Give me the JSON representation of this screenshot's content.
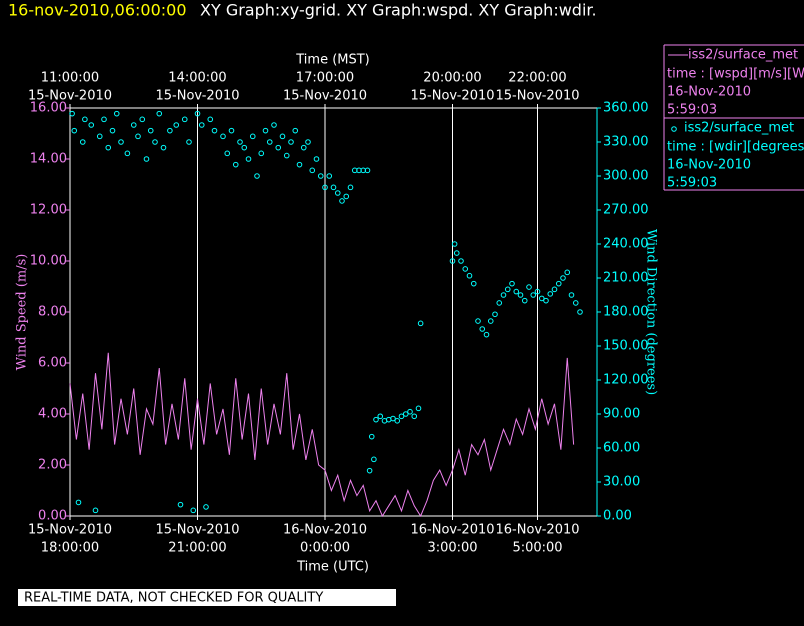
{
  "header": {
    "date": "16-nov-2010,06:00:00",
    "graphs": "XY Graph:xy-grid.  XY Graph:wspd.  XY Graph:wdir."
  },
  "footer": "REAL-TIME DATA, NOT CHECKED FOR QUALITY",
  "chart_data": {
    "type": "line",
    "xlabel": "Time (UTC)",
    "x2label": "Time (MST)",
    "ylabel": "Wind Speed (m/s)",
    "y2label": "Wind Direction (degrees)",
    "xlim": [
      0,
      12.4
    ],
    "ylim": [
      0,
      16
    ],
    "y2lim": [
      0,
      360
    ],
    "grid": true,
    "xticks": [
      {
        "value": 0,
        "label": [
          "15-Nov-2010",
          "18:00:00"
        ]
      },
      {
        "value": 3,
        "label": [
          "15-Nov-2010",
          "21:00:00"
        ]
      },
      {
        "value": 6,
        "label": [
          "16-Nov-2010",
          "0:00:00"
        ]
      },
      {
        "value": 9,
        "label": [
          "16-Nov-2010",
          "3:00:00"
        ]
      },
      {
        "value": 11,
        "label": [
          "16-Nov-2010",
          "5:00:00"
        ]
      }
    ],
    "x2ticks": [
      {
        "value": 0,
        "label": [
          "11:00:00",
          "15-Nov-2010"
        ]
      },
      {
        "value": 3,
        "label": [
          "14:00:00",
          "15-Nov-2010"
        ]
      },
      {
        "value": 6,
        "label": [
          "17:00:00",
          "15-Nov-2010"
        ]
      },
      {
        "value": 9,
        "label": [
          "20:00:00",
          "15-Nov-2010"
        ]
      },
      {
        "value": 11,
        "label": [
          "22:00:00",
          "15-Nov-2010"
        ]
      }
    ],
    "yticks": [
      {
        "value": 0,
        "label": "0.00"
      },
      {
        "value": 2,
        "label": "2.00"
      },
      {
        "value": 4,
        "label": "4.00"
      },
      {
        "value": 6,
        "label": "6.00"
      },
      {
        "value": 8,
        "label": "8.00"
      },
      {
        "value": 10,
        "label": "10.00"
      },
      {
        "value": 12,
        "label": "12.00"
      },
      {
        "value": 14,
        "label": "14.00"
      },
      {
        "value": 16,
        "label": "16.00"
      }
    ],
    "y2ticks": [
      {
        "value": 0,
        "label": "0.00"
      },
      {
        "value": 30,
        "label": "30.00"
      },
      {
        "value": 60,
        "label": "60.00"
      },
      {
        "value": 90,
        "label": "90.00"
      },
      {
        "value": 120,
        "label": "120.00"
      },
      {
        "value": 150,
        "label": "150.00"
      },
      {
        "value": 180,
        "label": "180.00"
      },
      {
        "value": 210,
        "label": "210.00"
      },
      {
        "value": 240,
        "label": "240.00"
      },
      {
        "value": 270,
        "label": "270.00"
      },
      {
        "value": 300,
        "label": "300.00"
      },
      {
        "value": 330,
        "label": "330.00"
      },
      {
        "value": 360,
        "label": "360.00"
      }
    ],
    "series": [
      {
        "name": "iss2/surface_met",
        "type": "line",
        "color": "#ee82ee",
        "legend_lines": [
          "time : [wspd][m/s][Wind",
          "16-Nov-2010",
          "5:59:03"
        ],
        "x": [
          0,
          0.15,
          0.3,
          0.45,
          0.6,
          0.75,
          0.9,
          1.05,
          1.2,
          1.35,
          1.5,
          1.65,
          1.8,
          1.95,
          2.1,
          2.25,
          2.4,
          2.55,
          2.7,
          2.85,
          3,
          3.15,
          3.3,
          3.45,
          3.6,
          3.75,
          3.9,
          4.05,
          4.2,
          4.35,
          4.5,
          4.65,
          4.8,
          4.95,
          5.1,
          5.25,
          5.4,
          5.55,
          5.7,
          5.85,
          6,
          6.15,
          6.3,
          6.45,
          6.6,
          6.75,
          6.9,
          7.05,
          7.2,
          7.35,
          7.5,
          7.65,
          7.8,
          7.95,
          8.1,
          8.25,
          8.4,
          8.55,
          8.7,
          8.85,
          9,
          9.15,
          9.3,
          9.45,
          9.6,
          9.75,
          9.9,
          10.05,
          10.2,
          10.35,
          10.5,
          10.65,
          10.8,
          10.95,
          11.1,
          11.25,
          11.4,
          11.55,
          11.7,
          11.85
        ],
        "values": [
          5.2,
          3.0,
          4.8,
          2.6,
          5.6,
          3.4,
          6.4,
          2.8,
          4.6,
          3.2,
          5.0,
          2.4,
          4.2,
          3.6,
          5.8,
          2.8,
          4.4,
          3.0,
          5.4,
          2.6,
          4.6,
          2.8,
          5.2,
          3.2,
          4.2,
          2.4,
          5.4,
          3.0,
          4.8,
          2.2,
          5.0,
          2.8,
          4.4,
          3.2,
          5.6,
          2.6,
          4.0,
          2.2,
          3.4,
          2.0,
          1.8,
          1.0,
          1.6,
          0.6,
          1.4,
          0.8,
          1.2,
          0.2,
          0.6,
          0.0,
          0.4,
          0.8,
          0.2,
          1.0,
          0.4,
          0.0,
          0.6,
          1.4,
          1.8,
          1.2,
          1.8,
          2.6,
          1.6,
          2.8,
          2.4,
          3.0,
          1.8,
          2.6,
          3.4,
          2.8,
          3.8,
          3.2,
          4.2,
          3.4,
          4.6,
          3.6,
          4.4,
          2.6,
          6.2,
          2.8
        ]
      },
      {
        "name": "iss2/surface_met",
        "type": "scatter",
        "axis": "y2",
        "color": "#00ffff",
        "legend_lines": [
          "time : [wdir][degrees][W",
          "16-Nov-2010",
          "5:59:03"
        ],
        "x": [
          0.05,
          0.1,
          0.2,
          0.3,
          0.35,
          0.5,
          0.6,
          0.7,
          0.8,
          0.9,
          1.0,
          1.1,
          1.2,
          1.35,
          1.5,
          1.6,
          1.7,
          1.8,
          1.9,
          2.0,
          2.1,
          2.2,
          2.35,
          2.5,
          2.6,
          2.7,
          2.8,
          2.9,
          3.0,
          3.1,
          3.2,
          3.3,
          3.4,
          3.6,
          3.7,
          3.8,
          3.9,
          4.0,
          4.1,
          4.2,
          4.3,
          4.4,
          4.5,
          4.6,
          4.7,
          4.8,
          4.9,
          5.0,
          5.1,
          5.2,
          5.3,
          5.4,
          5.5,
          5.6,
          5.7,
          5.8,
          5.9,
          6.0,
          6.1,
          6.2,
          6.3,
          6.4,
          6.5,
          6.6,
          6.7,
          6.8,
          6.9,
          7.0,
          7.05,
          7.1,
          7.15,
          7.2,
          7.3,
          7.4,
          7.5,
          7.6,
          7.7,
          7.8,
          7.9,
          8.0,
          8.1,
          8.2,
          8.25,
          9.0,
          9.05,
          9.1,
          9.2,
          9.3,
          9.4,
          9.5,
          9.6,
          9.7,
          9.8,
          9.9,
          10.0,
          10.1,
          10.2,
          10.3,
          10.4,
          10.5,
          10.6,
          10.7,
          10.8,
          10.9,
          11.0,
          11.1,
          11.2,
          11.3,
          11.4,
          11.5,
          11.6,
          11.7,
          11.8,
          11.9,
          12.0
        ],
        "values": [
          355,
          340,
          12,
          330,
          350,
          345,
          5,
          335,
          350,
          325,
          340,
          355,
          330,
          320,
          345,
          335,
          350,
          315,
          340,
          330,
          355,
          325,
          340,
          345,
          10,
          350,
          330,
          5,
          355,
          345,
          8,
          350,
          340,
          335,
          320,
          340,
          310,
          330,
          325,
          315,
          335,
          300,
          320,
          340,
          330,
          345,
          325,
          335,
          318,
          330,
          340,
          310,
          325,
          330,
          305,
          315,
          300,
          290,
          300,
          290,
          285,
          278,
          282,
          290,
          305,
          305,
          305,
          305,
          40,
          70,
          50,
          85,
          88,
          84,
          85,
          86,
          84,
          88,
          90,
          92,
          88,
          95,
          170,
          225,
          240,
          232,
          225,
          218,
          212,
          205,
          172,
          165,
          160,
          172,
          178,
          188,
          195,
          200,
          205,
          198,
          195,
          190,
          202,
          195,
          198,
          192,
          190,
          196,
          200,
          205,
          210,
          215,
          195,
          188,
          180
        ]
      }
    ]
  }
}
